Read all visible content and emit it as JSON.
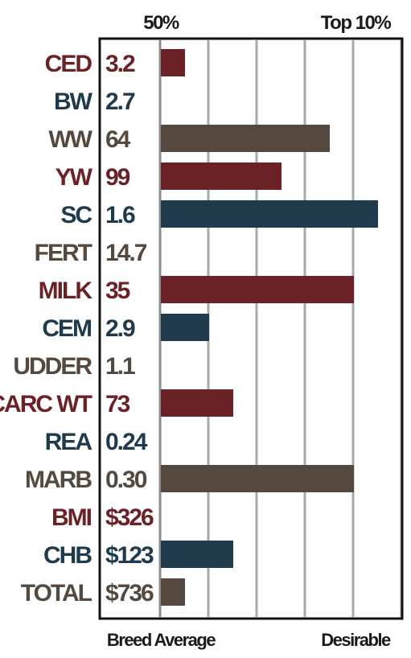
{
  "chart_data": {
    "type": "bar",
    "orientation": "horizontal",
    "header_left": "50%",
    "header_right": "Top 10%",
    "footer_left": "Breed Average",
    "footer_right": "Desirable",
    "colors": {
      "red": "#6b2226",
      "blue": "#1f3a4d",
      "gray": "#55493f",
      "grid": "#a8a8ad",
      "frame": "#111111"
    },
    "xlim": [
      0,
      5
    ],
    "grid": true,
    "rows": [
      {
        "label": "CED",
        "value_text": "3.2",
        "color": "red",
        "bar": 0.5
      },
      {
        "label": "BW",
        "value_text": "2.7",
        "color": "blue",
        "bar": 0
      },
      {
        "label": "WW",
        "value_text": "64",
        "color": "gray",
        "bar": 3.5
      },
      {
        "label": "YW",
        "value_text": "99",
        "color": "red",
        "bar": 2.5
      },
      {
        "label": "SC",
        "value_text": "1.6",
        "color": "blue",
        "bar": 4.5
      },
      {
        "label": "FERT",
        "value_text": "14.7",
        "color": "gray",
        "bar": 0
      },
      {
        "label": "MILK",
        "value_text": "35",
        "color": "red",
        "bar": 4
      },
      {
        "label": "CEM",
        "value_text": "2.9",
        "color": "blue",
        "bar": 1
      },
      {
        "label": "UDDER",
        "value_text": "1.1",
        "color": "gray",
        "bar": 0
      },
      {
        "label": "CARC WT",
        "value_text": "73",
        "color": "red",
        "bar": 1.5
      },
      {
        "label": "REA",
        "value_text": "0.24",
        "color": "blue",
        "bar": 0
      },
      {
        "label": "MARB",
        "value_text": "0.30",
        "color": "gray",
        "bar": 4
      },
      {
        "label": "BMI",
        "value_text": "$326",
        "color": "red",
        "bar": 0
      },
      {
        "label": "CHB",
        "value_text": "$123",
        "color": "blue",
        "bar": 1.5
      },
      {
        "label": "TOTAL",
        "value_text": "$736",
        "color": "gray",
        "bar": 0.5
      }
    ]
  }
}
